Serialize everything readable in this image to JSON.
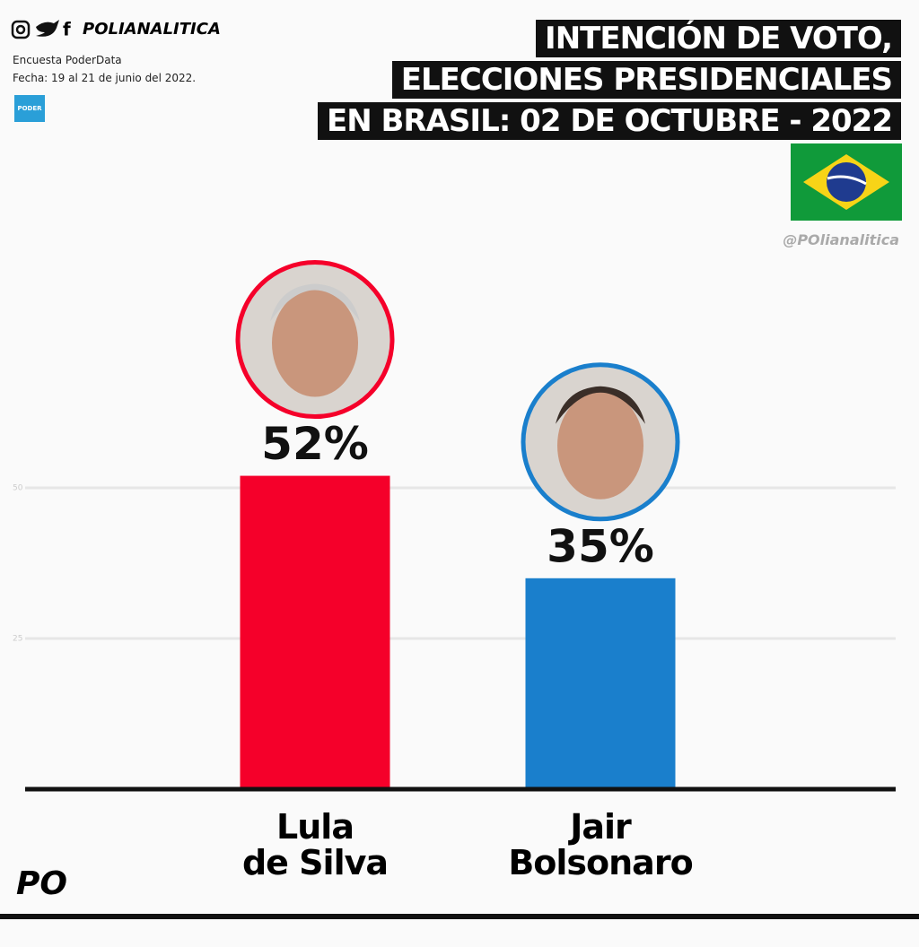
{
  "chart_data": {
    "type": "bar",
    "brand": "POLIANALITICA",
    "source": "Encuesta PoderData",
    "date": "Fecha: 19 al 21 de junio del 2022.",
    "logo": "PODER",
    "title_lines": [
      "INTENCIÓN DE VOTO,",
      "ELECCIONES PRESIDENCIALES",
      "EN BRASIL: 02 DE OCTUBRE - 2022"
    ],
    "handle": "@POlianalitica",
    "footer": "PO",
    "categories": [
      "Lula\nde Silva",
      "Jair\nBolsonaro"
    ],
    "values": [
      52,
      35
    ],
    "value_labels": [
      "52%",
      "35%"
    ],
    "colors": [
      "#f5002a",
      "#1a7fcc"
    ],
    "ylim": [
      0,
      75
    ],
    "yticks": [
      25,
      50
    ],
    "grid": true
  }
}
